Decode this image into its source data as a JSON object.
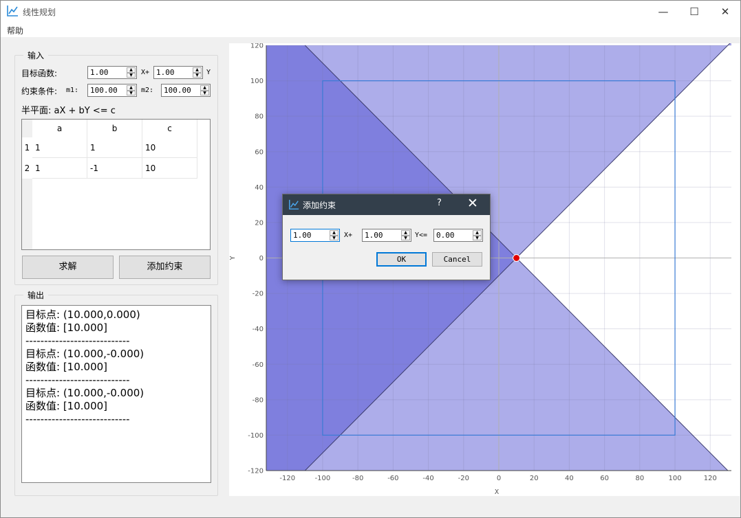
{
  "window": {
    "title": "线性规划",
    "minimize": "—",
    "maximize": "☐",
    "close": "✕"
  },
  "menu": {
    "help": "帮助"
  },
  "input": {
    "group_title": "输入",
    "objective_label": "目标函数:",
    "obj_x_value": "1.00",
    "x_plus": "X+",
    "obj_y_value": "1.00",
    "y_label": "Y",
    "constraint_label": "约束条件:",
    "m1_label": "m1:",
    "m1_value": "100.00",
    "m2_label": "m2:",
    "m2_value": "100.00",
    "halfplane_label": "半平面: aX + bY <= c",
    "table": {
      "headers": [
        "a",
        "b",
        "c"
      ],
      "rows": [
        {
          "num": "1",
          "a": "1",
          "b": "1",
          "c": "10"
        },
        {
          "num": "2",
          "a": "1",
          "b": "-1",
          "c": "10"
        }
      ]
    },
    "solve_button": "求解",
    "add_constraint_button": "添加约束"
  },
  "output": {
    "group_title": "输出",
    "lines": [
      "目标点: (10.000,0.000)",
      "函数值: [10.000]",
      "----------------------------",
      "目标点: (10.000,-0.000)",
      "函数值: [10.000]",
      "----------------------------",
      "目标点: (10.000,-0.000)",
      "函数值: [10.000]",
      "----------------------------"
    ]
  },
  "dialog": {
    "title": "添加约束",
    "help": "?",
    "close": "✕",
    "a_value": "1.00",
    "x_plus": "X+",
    "b_value": "1.00",
    "y_le": "Y<=",
    "c_value": "0.00",
    "ok": "OK",
    "cancel": "Cancel"
  },
  "colors": {
    "dark_region": "#7f7fde",
    "light_region": "#adadea",
    "box_line": "#3a7bd5",
    "optimum_point": "#e00000"
  },
  "chart_data": {
    "type": "scatter",
    "xlabel": "X",
    "ylabel": "Y",
    "xlim": [
      -132,
      132
    ],
    "ylim": [
      -120,
      120
    ],
    "xticks": [
      -120,
      -100,
      -80,
      -60,
      -40,
      -20,
      0,
      20,
      40,
      60,
      80,
      100,
      120
    ],
    "yticks": [
      -120,
      -100,
      -80,
      -60,
      -40,
      -20,
      0,
      20,
      40,
      60,
      80,
      100,
      120
    ],
    "grid": true,
    "halfplanes": [
      {
        "a": 1,
        "b": 1,
        "c": 10
      },
      {
        "a": 1,
        "b": -1,
        "c": 10
      }
    ],
    "bounding_box": {
      "x": [
        -100,
        100
      ],
      "y": [
        -100,
        100
      ]
    },
    "optimum": {
      "x": 10,
      "y": 0
    }
  }
}
